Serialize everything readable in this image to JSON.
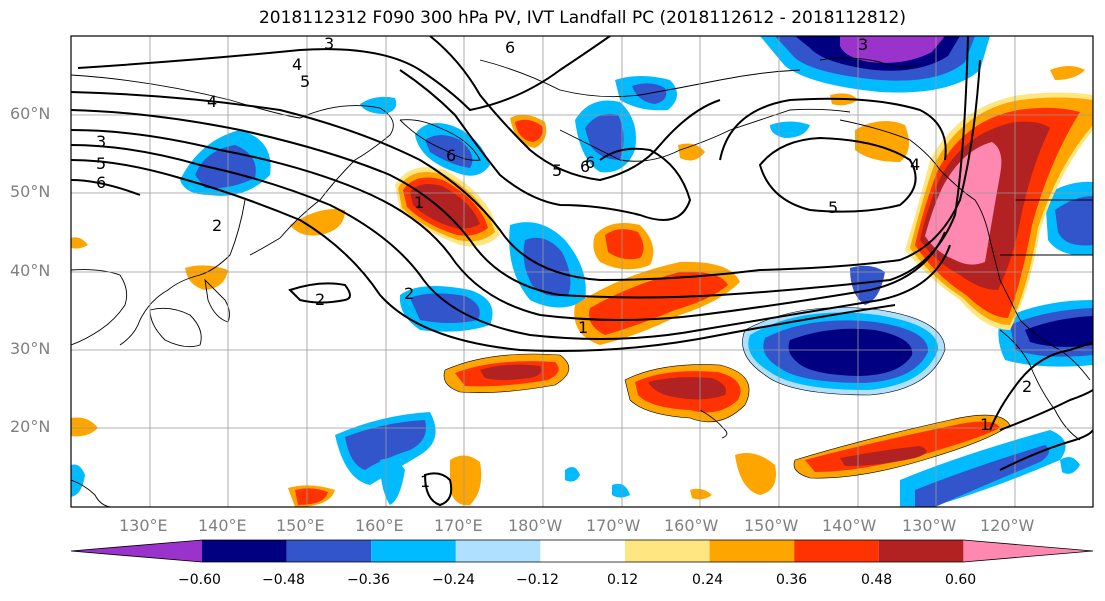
{
  "title": "2018112312 F090 300 hPa PV, IVT Landfall PC (2018112612 - 2018112812)",
  "lat_labels": [
    "60°N",
    "50°N",
    "40°N",
    "30°N",
    "20°N"
  ],
  "lon_labels": [
    "130°E",
    "140°E",
    "150°E",
    "160°E",
    "170°E",
    "180°W",
    "170°W",
    "160°W",
    "150°W",
    "140°W",
    "130°W",
    "120°W"
  ],
  "colorbar": {
    "tick_labels": [
      "−0.60",
      "−0.48",
      "−0.36",
      "−0.24",
      "−0.12",
      "0.12",
      "0.24",
      "0.36",
      "0.48",
      "0.60"
    ],
    "colors": [
      "#9933cc",
      "#000080",
      "#3355cc",
      "#00bbff",
      "#b0e0ff",
      "#ffffff",
      "#ffe680",
      "#ffa500",
      "#ff3300",
      "#b22222",
      "#ff88b0"
    ]
  },
  "contour_labels": [
    "3",
    "6",
    "4",
    "5",
    "4",
    "3",
    "5",
    "6",
    "6",
    "2",
    "1",
    "6",
    "5",
    "6",
    "5",
    "4",
    "2",
    "1",
    "2",
    "3",
    "1",
    "2",
    "1"
  ]
}
